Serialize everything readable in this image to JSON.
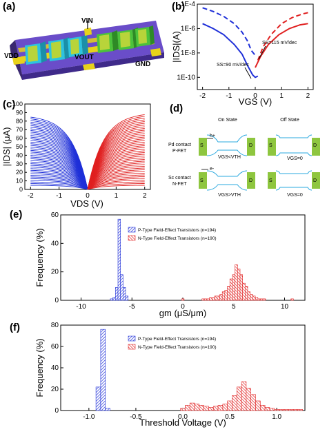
{
  "panel_labels": {
    "a": "(a)",
    "b": "(b)",
    "c": "(c)",
    "d": "(d)",
    "e": "(e)",
    "f": "(f)"
  },
  "colors": {
    "p_type": "#1e2fd8",
    "n_type": "#e02020"
  },
  "icons": [
    "device-3d-render",
    "pfet-band-diagram",
    "nfet-band-diagram",
    "hole-arrow-icon",
    "electron-arrow-icon"
  ],
  "panel_a": {
    "labels": {
      "vin": "VIN",
      "vdd": "VDD",
      "vout": "VOUT",
      "gnd": "GND"
    }
  },
  "panel_d": {
    "on_state": "On State",
    "off_state": "Off State",
    "pfet_label": [
      "Pd contact",
      "P-FET"
    ],
    "nfet_label": [
      "Sc contact",
      "N-FET"
    ],
    "source": "S",
    "drain": "D",
    "hole": "h+",
    "electron": "e-",
    "pfet_on_cond": "VGS<VTH",
    "pfet_off_cond": "VGS=0",
    "nfet_on_cond": "VGS>VTH",
    "nfet_off_cond": "VGS=0"
  },
  "chart_data": [
    {
      "id": "b",
      "type": "line",
      "xlabel": "VGS (V)",
      "ylabel": "|IDS|(A)",
      "xlim": [
        -2.2,
        2.2
      ],
      "ylim_log10": [
        -11,
        -4
      ],
      "x_ticks": [
        "-2",
        "-1",
        "0",
        "1",
        "2"
      ],
      "y_ticks": [
        "1E-4",
        "1E-6",
        "1E-8",
        "1E-10"
      ],
      "y_scale": "log",
      "annotations": [
        "SS=115 mV/dec",
        "SS=90 mV/dec"
      ],
      "series": [
        {
          "color": "blue",
          "dashed": true,
          "x": [
            -2.0,
            -1.6,
            -1.2,
            -0.8,
            -0.5,
            -0.3,
            -0.15,
            0.0
          ],
          "y_log10": [
            -4.3,
            -4.6,
            -5.0,
            -5.6,
            -6.3,
            -7.0,
            -7.8,
            -8.2
          ]
        },
        {
          "color": "blue",
          "dashed": false,
          "x": [
            -2.0,
            -1.6,
            -1.2,
            -0.8,
            -0.5,
            -0.3,
            -0.1,
            0.0,
            0.1
          ],
          "y_log10": [
            -5.6,
            -6.0,
            -6.5,
            -7.3,
            -8.1,
            -9.0,
            -9.8,
            -10.0,
            -9.9
          ]
        },
        {
          "color": "red",
          "dashed": true,
          "x": [
            0.1,
            0.3,
            0.6,
            1.0,
            1.4,
            1.8,
            2.0
          ],
          "y_log10": [
            -8.6,
            -7.5,
            -6.5,
            -5.6,
            -5.1,
            -4.8,
            -4.7
          ]
        },
        {
          "color": "red",
          "dashed": false,
          "x": [
            0.0,
            0.2,
            0.5,
            0.9,
            1.3,
            1.7,
            2.0
          ],
          "y_log10": [
            -9.2,
            -8.3,
            -7.3,
            -6.5,
            -6.0,
            -5.7,
            -5.6
          ]
        }
      ]
    },
    {
      "id": "c",
      "type": "line",
      "xlabel": "VDS (V)",
      "ylabel": "|IDS| (μA)",
      "xlim": [
        -2.2,
        2.2
      ],
      "ylim": [
        0,
        100
      ],
      "x_ticks": [
        "-2",
        "-1",
        "0",
        "1",
        "2"
      ],
      "y_ticks": [
        "0",
        "10",
        "20",
        "30",
        "40",
        "50",
        "60",
        "70",
        "80",
        "90",
        "100"
      ],
      "families": [
        {
          "color": "blue",
          "curves": 42,
          "x_range": [
            -2,
            0
          ],
          "max_current": 87,
          "min_current": 5
        },
        {
          "color": "red",
          "curves": 42,
          "x_range": [
            0,
            2
          ],
          "max_current": 90,
          "min_current": 5
        }
      ]
    },
    {
      "id": "e",
      "type": "bar",
      "xlabel": "gm (μS/μm)",
      "ylabel": "Frequency (%)",
      "xlim": [
        -12,
        12
      ],
      "ylim": [
        0,
        60
      ],
      "x_ticks": [
        "-10",
        "-5",
        "0",
        "5",
        "10"
      ],
      "y_ticks": [
        "0",
        "20",
        "40",
        "60"
      ],
      "legend": [
        "P-Type Field-Effect Transistors (n=194)",
        "N-Type Field-Effect Transistors (n=190)"
      ],
      "legend_position": "top-center",
      "bin_width": 0.25,
      "series": [
        {
          "name": "P-Type Field-Effect Transistors (n=194)",
          "color": "blue",
          "x": [
            -7.0,
            -6.75,
            -6.5,
            -6.25,
            -6.0,
            -5.75,
            -5.5
          ],
          "values": [
            1,
            2,
            9,
            57,
            18,
            9,
            3
          ]
        },
        {
          "name": "N-Type Field-Effect Transistors (n=190)",
          "color": "red",
          "x": [
            0.0,
            2.0,
            2.25,
            2.5,
            2.75,
            3.0,
            3.25,
            3.5,
            3.75,
            4.0,
            4.25,
            4.5,
            4.75,
            5.0,
            5.25,
            5.5,
            5.75,
            6.0,
            6.25,
            6.5,
            6.75,
            7.0,
            7.25,
            7.5,
            7.75,
            8.0,
            10.75
          ],
          "values": [
            1,
            1,
            1,
            1,
            2,
            2,
            3,
            3,
            4,
            6,
            7,
            10,
            15,
            18,
            25,
            22,
            18,
            12,
            10,
            6,
            4,
            3,
            2,
            1,
            1,
            1,
            1
          ]
        }
      ]
    },
    {
      "id": "f",
      "type": "bar",
      "xlabel": "Threshold Voltage (V)",
      "ylabel": "Frequency (%)",
      "xlim": [
        -1.3,
        1.3
      ],
      "ylim": [
        0,
        80
      ],
      "x_ticks": [
        "-1.0",
        "-0.5",
        "0.0",
        "0.5",
        "1.0"
      ],
      "y_ticks": [
        "0",
        "20",
        "40",
        "60",
        "80"
      ],
      "legend": [
        "P-Type Field-Effect Transistors (n=194)",
        "N-Type Field-Effect Transistors (n=190)"
      ],
      "legend_position": "top-center",
      "bin_width": 0.05,
      "series": [
        {
          "name": "P-Type Field-Effect Transistors (n=194)",
          "color": "blue",
          "x": [
            -0.9,
            -0.85,
            -0.8
          ],
          "values": [
            22,
            76,
            2
          ]
        },
        {
          "name": "N-Type Field-Effect Transistors (n=190)",
          "color": "red",
          "x": [
            0.0,
            0.05,
            0.1,
            0.15,
            0.2,
            0.25,
            0.3,
            0.35,
            0.4,
            0.45,
            0.5,
            0.55,
            0.6,
            0.65,
            0.7,
            0.75,
            0.8,
            0.85,
            0.9,
            0.95,
            1.0,
            1.05,
            1.1,
            1.15,
            1.2,
            1.25
          ],
          "values": [
            2,
            5,
            7,
            6,
            5,
            4,
            3,
            4,
            5,
            6,
            9,
            14,
            22,
            27,
            21,
            15,
            9,
            5,
            3,
            2,
            1,
            1,
            1,
            1,
            1,
            1
          ]
        }
      ]
    }
  ]
}
